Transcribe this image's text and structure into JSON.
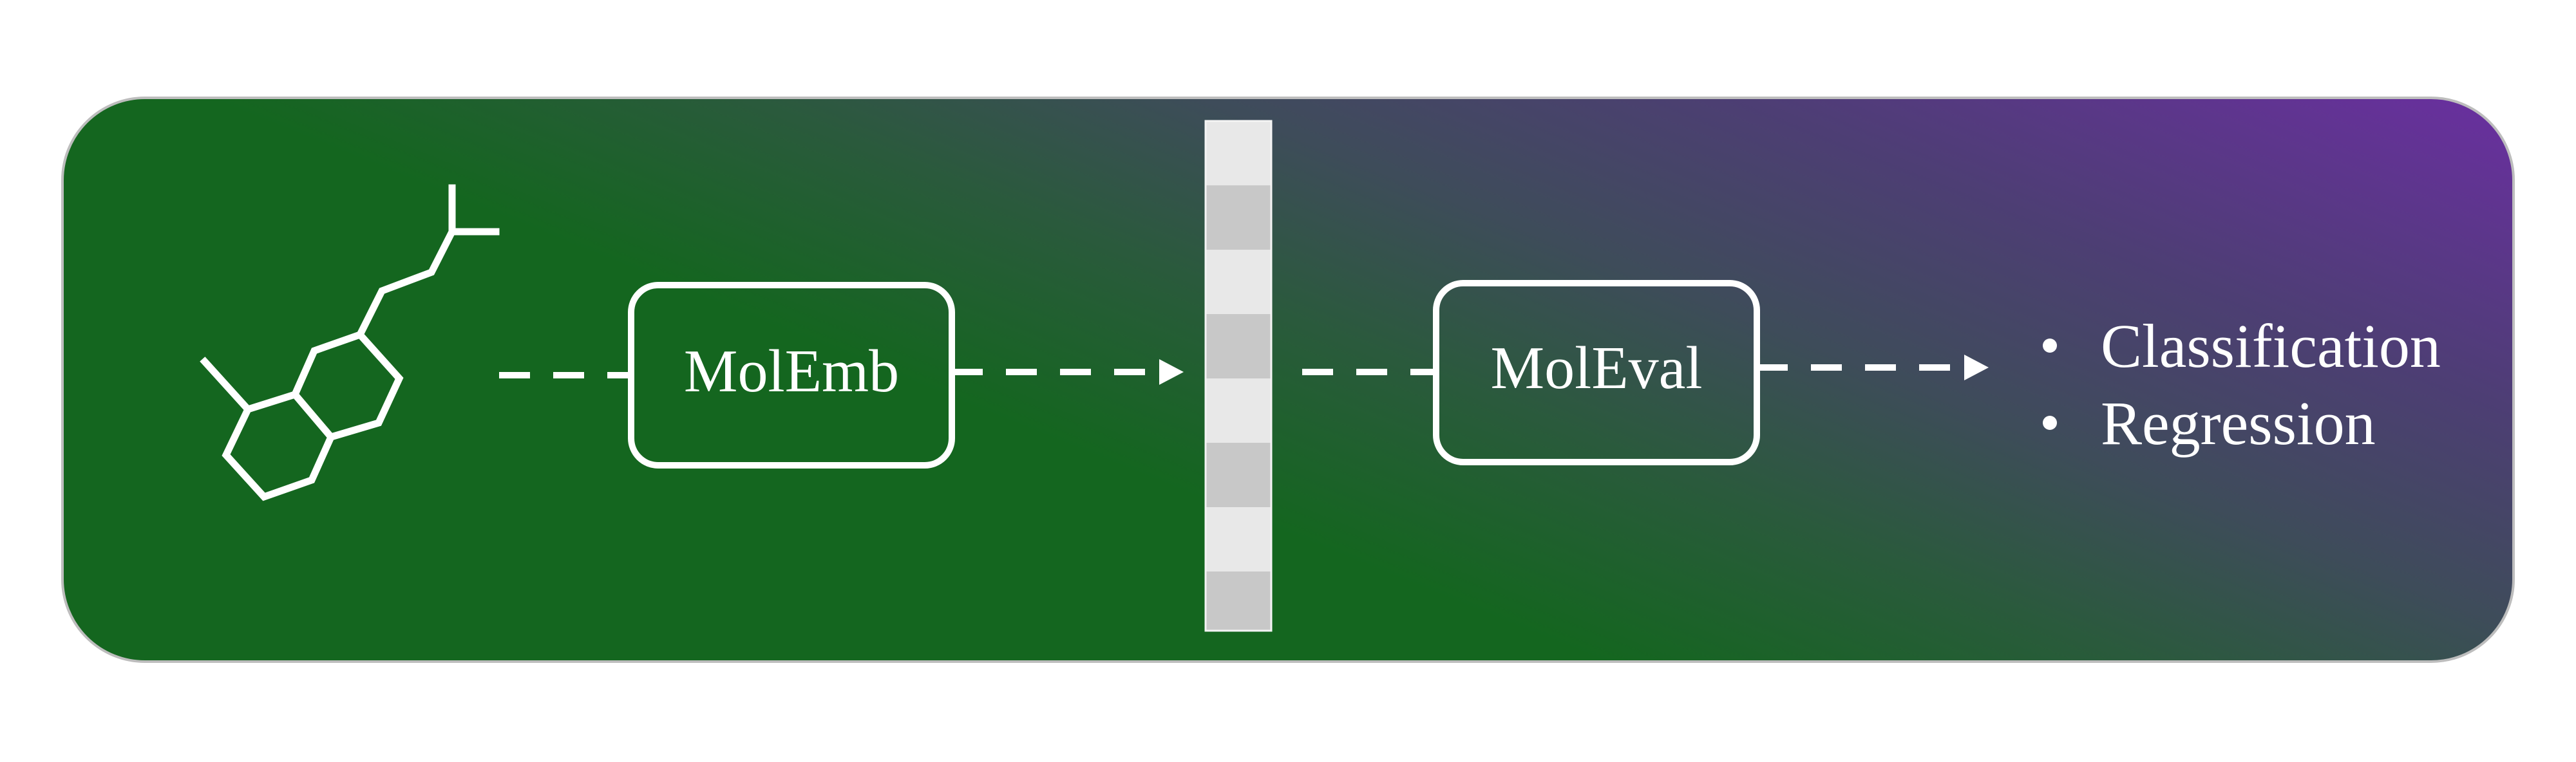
{
  "diagram": {
    "encoder": {
      "label": "MolEmb"
    },
    "evaluator": {
      "label": "MolEval"
    },
    "embedding_cells": 8,
    "outputs": [
      {
        "label": "Classification"
      },
      {
        "label": "Regression"
      }
    ]
  },
  "colors": {
    "panel_green": "#14661f",
    "panel_purple": "#6a2fa0",
    "stroke": "#ffffff",
    "embedding_light": "#e8e8e8",
    "embedding_dark": "#c8c8c8"
  },
  "icons": [
    "molecule-icon",
    "arrow-head-icon",
    "bullet-icon"
  ]
}
